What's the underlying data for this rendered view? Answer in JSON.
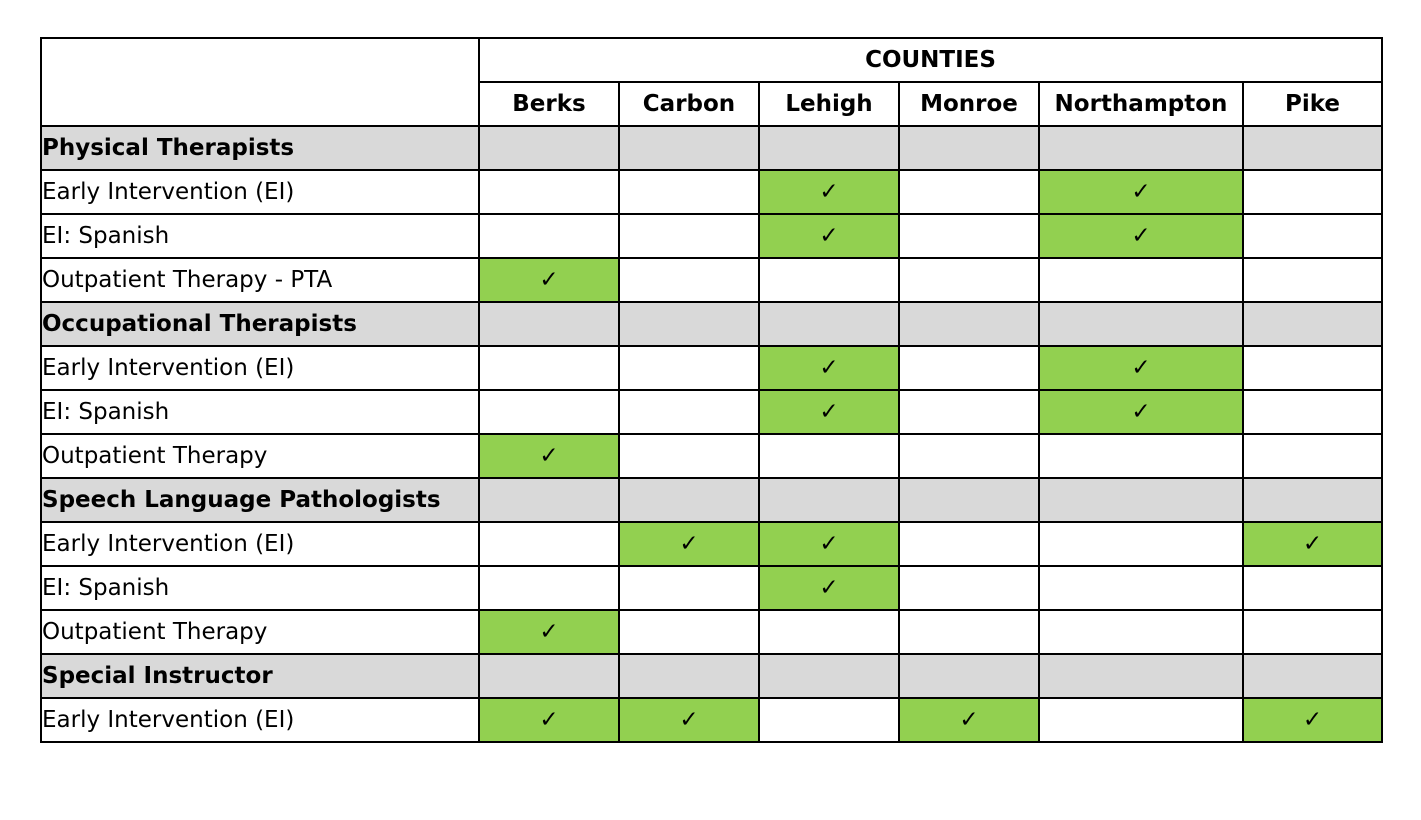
{
  "colors": {
    "checked_cell": "#92d050",
    "section_row": "#d9d9d9"
  },
  "header": {
    "group_label": "COUNTIES",
    "counties": [
      "Berks",
      "Carbon",
      "Lehigh",
      "Monroe",
      "Northampton",
      "Pike"
    ]
  },
  "check_glyph": "✓",
  "rows": [
    {
      "label": "Physical Therapists",
      "kind": "section",
      "cells": [
        false,
        false,
        false,
        false,
        false,
        false
      ]
    },
    {
      "label": "Early Intervention (EI)",
      "kind": "item",
      "cells": [
        false,
        false,
        true,
        false,
        true,
        false
      ]
    },
    {
      "label": "EI: Spanish",
      "kind": "sub",
      "cells": [
        false,
        false,
        true,
        false,
        true,
        false
      ]
    },
    {
      "label": "Outpatient Therapy - PTA",
      "kind": "item",
      "cells": [
        true,
        false,
        false,
        false,
        false,
        false
      ]
    },
    {
      "label": "Occupational Therapists",
      "kind": "section",
      "cells": [
        false,
        false,
        false,
        false,
        false,
        false
      ]
    },
    {
      "label": "Early Intervention (EI)",
      "kind": "item",
      "cells": [
        false,
        false,
        true,
        false,
        true,
        false
      ]
    },
    {
      "label": "EI: Spanish",
      "kind": "sub",
      "cells": [
        false,
        false,
        true,
        false,
        true,
        false
      ]
    },
    {
      "label": "Outpatient Therapy",
      "kind": "item",
      "cells": [
        true,
        false,
        false,
        false,
        false,
        false
      ]
    },
    {
      "label": "Speech Language Pathologists",
      "kind": "section",
      "cells": [
        false,
        false,
        false,
        false,
        false,
        false
      ]
    },
    {
      "label": "Early Intervention (EI)",
      "kind": "item",
      "cells": [
        false,
        true,
        true,
        false,
        false,
        true
      ]
    },
    {
      "label": "EI: Spanish",
      "kind": "sub",
      "cells": [
        false,
        false,
        true,
        false,
        false,
        false
      ]
    },
    {
      "label": "Outpatient Therapy",
      "kind": "item",
      "cells": [
        true,
        false,
        false,
        false,
        false,
        false
      ]
    },
    {
      "label": "Special Instructor",
      "kind": "section",
      "cells": [
        false,
        false,
        false,
        false,
        false,
        false
      ]
    },
    {
      "label": "Early Intervention (EI)",
      "kind": "item",
      "cells": [
        true,
        true,
        false,
        true,
        false,
        true
      ]
    }
  ]
}
